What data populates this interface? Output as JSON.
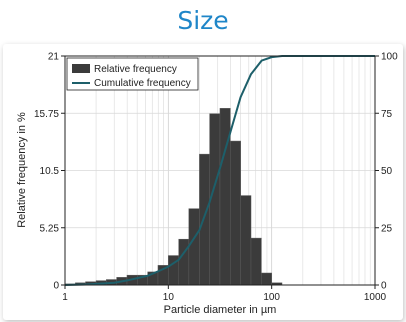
{
  "page_title": "Size",
  "colors": {
    "title": "#1f86c8",
    "bars": "#3b3b3b",
    "curve": "#1d5f6a"
  },
  "chart_data": {
    "type": "bar+line",
    "xlabel": "Particle diameter in µm",
    "ylabel": "Relative frequency in %",
    "xscale": "log",
    "xlim": [
      1,
      1000
    ],
    "ylim_left": [
      0,
      21
    ],
    "ylim_right": [
      0,
      100
    ],
    "x_ticks": [
      "1",
      "10",
      "100",
      "1000"
    ],
    "y_ticks_left": [
      "0",
      "5.25",
      "10.5",
      "15.75",
      "21"
    ],
    "y_ticks_right": [
      "0",
      "25",
      "50",
      "75",
      "100"
    ],
    "grid": true,
    "legend_position": "top-left",
    "series": [
      {
        "name": "Relative frequency",
        "type": "bar",
        "axis": "left",
        "bins": [
          [
            1.0,
            1.26,
            0.1
          ],
          [
            1.26,
            1.58,
            0.2
          ],
          [
            1.58,
            2.0,
            0.3
          ],
          [
            2.0,
            2.51,
            0.4
          ],
          [
            2.51,
            3.16,
            0.5
          ],
          [
            3.16,
            3.98,
            0.7
          ],
          [
            3.98,
            5.01,
            0.9
          ],
          [
            5.01,
            6.31,
            0.9
          ],
          [
            6.31,
            7.94,
            1.2
          ],
          [
            7.94,
            10.0,
            1.8
          ],
          [
            10.0,
            12.6,
            2.7
          ],
          [
            12.6,
            15.8,
            4.2
          ],
          [
            15.8,
            20.0,
            7.0
          ],
          [
            20.0,
            25.1,
            12.0
          ],
          [
            25.1,
            31.6,
            15.7
          ],
          [
            31.6,
            39.8,
            16.2
          ],
          [
            39.8,
            50.1,
            13.2
          ],
          [
            50.1,
            63.1,
            8.2
          ],
          [
            63.1,
            79.4,
            4.3
          ],
          [
            79.4,
            100.0,
            1.1
          ],
          [
            100.0,
            125.9,
            0.2
          ]
        ]
      },
      {
        "name": "Cumulative frequency",
        "type": "line",
        "axis": "right",
        "x": [
          1,
          1.6,
          2,
          3,
          4,
          5,
          6.3,
          8,
          10,
          12.6,
          15.8,
          20,
          25,
          31.6,
          40,
          50,
          63,
          80,
          100,
          126,
          160,
          200,
          300,
          500,
          1000
        ],
        "y": [
          0,
          0.2,
          0.5,
          1,
          2,
          3,
          4,
          6,
          8,
          11,
          17,
          24,
          36,
          51,
          67,
          82,
          92,
          98,
          99.5,
          100,
          100,
          100,
          100,
          100,
          100
        ]
      }
    ]
  }
}
